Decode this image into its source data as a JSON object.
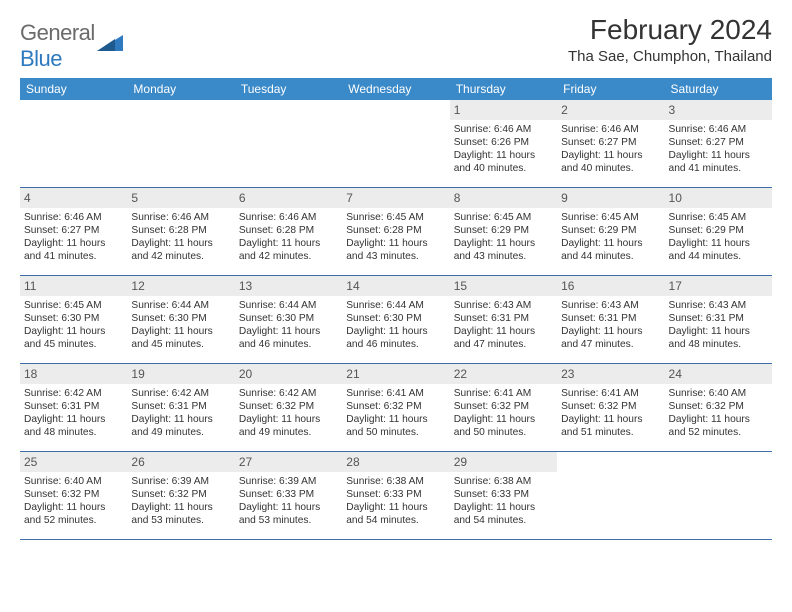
{
  "logo": {
    "text1": "General",
    "text2": "Blue"
  },
  "title": "February 2024",
  "location": "Tha Sae, Chumphon, Thailand",
  "colors": {
    "header_bg": "#3a89c9",
    "header_text": "#ffffff",
    "daynum_bg": "#ececec",
    "row_border": "#3a6ea5",
    "logo_gray": "#6b6b6b",
    "logo_blue": "#2f7abf"
  },
  "dow": [
    "Sunday",
    "Monday",
    "Tuesday",
    "Wednesday",
    "Thursday",
    "Friday",
    "Saturday"
  ],
  "weeks": [
    [
      null,
      null,
      null,
      null,
      {
        "n": "1",
        "sr": "6:46 AM",
        "ss": "6:26 PM",
        "dl": "11 hours and 40 minutes."
      },
      {
        "n": "2",
        "sr": "6:46 AM",
        "ss": "6:27 PM",
        "dl": "11 hours and 40 minutes."
      },
      {
        "n": "3",
        "sr": "6:46 AM",
        "ss": "6:27 PM",
        "dl": "11 hours and 41 minutes."
      }
    ],
    [
      {
        "n": "4",
        "sr": "6:46 AM",
        "ss": "6:27 PM",
        "dl": "11 hours and 41 minutes."
      },
      {
        "n": "5",
        "sr": "6:46 AM",
        "ss": "6:28 PM",
        "dl": "11 hours and 42 minutes."
      },
      {
        "n": "6",
        "sr": "6:46 AM",
        "ss": "6:28 PM",
        "dl": "11 hours and 42 minutes."
      },
      {
        "n": "7",
        "sr": "6:45 AM",
        "ss": "6:28 PM",
        "dl": "11 hours and 43 minutes."
      },
      {
        "n": "8",
        "sr": "6:45 AM",
        "ss": "6:29 PM",
        "dl": "11 hours and 43 minutes."
      },
      {
        "n": "9",
        "sr": "6:45 AM",
        "ss": "6:29 PM",
        "dl": "11 hours and 44 minutes."
      },
      {
        "n": "10",
        "sr": "6:45 AM",
        "ss": "6:29 PM",
        "dl": "11 hours and 44 minutes."
      }
    ],
    [
      {
        "n": "11",
        "sr": "6:45 AM",
        "ss": "6:30 PM",
        "dl": "11 hours and 45 minutes."
      },
      {
        "n": "12",
        "sr": "6:44 AM",
        "ss": "6:30 PM",
        "dl": "11 hours and 45 minutes."
      },
      {
        "n": "13",
        "sr": "6:44 AM",
        "ss": "6:30 PM",
        "dl": "11 hours and 46 minutes."
      },
      {
        "n": "14",
        "sr": "6:44 AM",
        "ss": "6:30 PM",
        "dl": "11 hours and 46 minutes."
      },
      {
        "n": "15",
        "sr": "6:43 AM",
        "ss": "6:31 PM",
        "dl": "11 hours and 47 minutes."
      },
      {
        "n": "16",
        "sr": "6:43 AM",
        "ss": "6:31 PM",
        "dl": "11 hours and 47 minutes."
      },
      {
        "n": "17",
        "sr": "6:43 AM",
        "ss": "6:31 PM",
        "dl": "11 hours and 48 minutes."
      }
    ],
    [
      {
        "n": "18",
        "sr": "6:42 AM",
        "ss": "6:31 PM",
        "dl": "11 hours and 48 minutes."
      },
      {
        "n": "19",
        "sr": "6:42 AM",
        "ss": "6:31 PM",
        "dl": "11 hours and 49 minutes."
      },
      {
        "n": "20",
        "sr": "6:42 AM",
        "ss": "6:32 PM",
        "dl": "11 hours and 49 minutes."
      },
      {
        "n": "21",
        "sr": "6:41 AM",
        "ss": "6:32 PM",
        "dl": "11 hours and 50 minutes."
      },
      {
        "n": "22",
        "sr": "6:41 AM",
        "ss": "6:32 PM",
        "dl": "11 hours and 50 minutes."
      },
      {
        "n": "23",
        "sr": "6:41 AM",
        "ss": "6:32 PM",
        "dl": "11 hours and 51 minutes."
      },
      {
        "n": "24",
        "sr": "6:40 AM",
        "ss": "6:32 PM",
        "dl": "11 hours and 52 minutes."
      }
    ],
    [
      {
        "n": "25",
        "sr": "6:40 AM",
        "ss": "6:32 PM",
        "dl": "11 hours and 52 minutes."
      },
      {
        "n": "26",
        "sr": "6:39 AM",
        "ss": "6:32 PM",
        "dl": "11 hours and 53 minutes."
      },
      {
        "n": "27",
        "sr": "6:39 AM",
        "ss": "6:33 PM",
        "dl": "11 hours and 53 minutes."
      },
      {
        "n": "28",
        "sr": "6:38 AM",
        "ss": "6:33 PM",
        "dl": "11 hours and 54 minutes."
      },
      {
        "n": "29",
        "sr": "6:38 AM",
        "ss": "6:33 PM",
        "dl": "11 hours and 54 minutes."
      },
      null,
      null
    ]
  ],
  "labels": {
    "sunrise": "Sunrise:",
    "sunset": "Sunset:",
    "daylight": "Daylight:"
  }
}
